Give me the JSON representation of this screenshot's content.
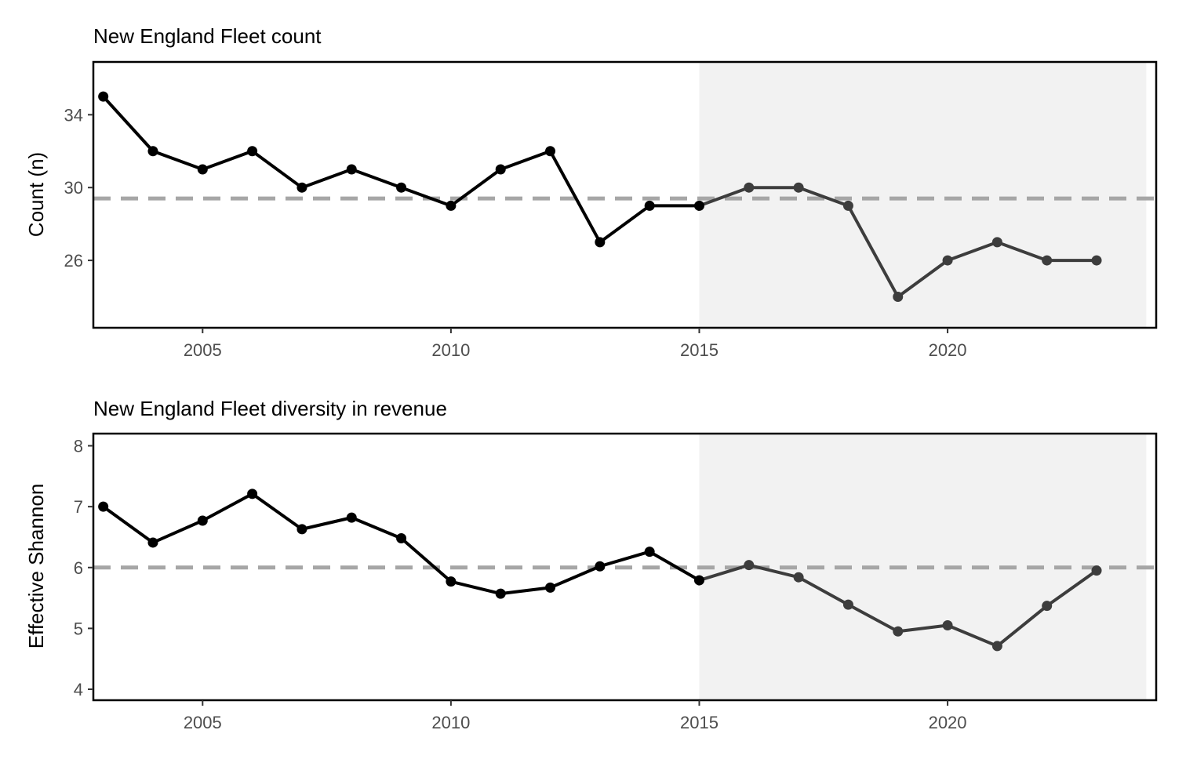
{
  "chart_data": [
    {
      "type": "line",
      "title": "New England Fleet count",
      "xlabel": "",
      "ylabel": "Count (n)",
      "xlim": [
        2002.8,
        2024.2
      ],
      "ylim": [
        22.3,
        36.9
      ],
      "xticks": [
        2005,
        2010,
        2015,
        2020
      ],
      "yticks": [
        26,
        30,
        34
      ],
      "grid": false,
      "legend": "none",
      "reference_line": 29.4,
      "shaded_region": [
        2015,
        2024
      ],
      "series": [
        {
          "x": [
            2003,
            2004,
            2005,
            2006,
            2007,
            2008,
            2009,
            2010,
            2011,
            2012,
            2013,
            2014,
            2015,
            2016,
            2017,
            2018,
            2019,
            2020,
            2021,
            2022,
            2023
          ],
          "values": [
            35,
            32,
            31,
            32,
            30,
            31,
            30,
            29,
            31,
            32,
            27,
            29,
            29,
            30,
            30,
            29,
            24,
            26,
            27,
            26,
            26
          ]
        }
      ],
      "colors": {
        "line_early": "#000000",
        "line_recent": "#3d3d3d",
        "reference": "#a6a6a6",
        "shade": "#f2f2f2"
      }
    },
    {
      "type": "line",
      "title": "New England Fleet diversity in revenue",
      "xlabel": "",
      "ylabel": "Effective Shannon",
      "xlim": [
        2002.8,
        2024.2
      ],
      "ylim": [
        3.82,
        8.2
      ],
      "xticks": [
        2005,
        2010,
        2015,
        2020
      ],
      "yticks": [
        4,
        5,
        6,
        7,
        8
      ],
      "grid": false,
      "legend": "none",
      "reference_line": 6.0,
      "shaded_region": [
        2015,
        2024
      ],
      "series": [
        {
          "x": [
            2003,
            2004,
            2005,
            2006,
            2007,
            2008,
            2009,
            2010,
            2011,
            2012,
            2013,
            2014,
            2015,
            2016,
            2017,
            2018,
            2019,
            2020,
            2021,
            2022,
            2023
          ],
          "values": [
            7.0,
            6.41,
            6.77,
            7.21,
            6.63,
            6.82,
            6.48,
            5.77,
            5.57,
            5.67,
            6.02,
            6.26,
            5.79,
            6.04,
            5.84,
            5.39,
            4.95,
            5.05,
            4.71,
            5.37,
            5.95
          ]
        }
      ],
      "colors": {
        "line_early": "#000000",
        "line_recent": "#3d3d3d",
        "reference": "#a6a6a6",
        "shade": "#f2f2f2"
      }
    }
  ]
}
